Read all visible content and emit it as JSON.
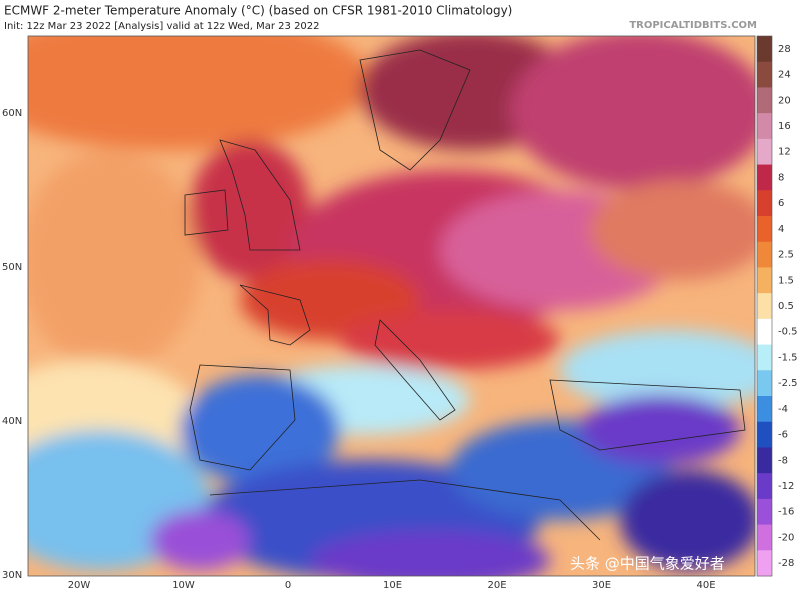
{
  "header": {
    "title": "ECMWF 2-meter Temperature Anomaly (°C) (based on CFSR 1981-2010 Climatology)",
    "subtitle": "Init: 12z Mar 23 2022   [Analysis]   valid at 12z Wed, Mar 23 2022",
    "brand": "TROPICALTIDBITS.COM"
  },
  "map": {
    "lat_labels": [
      "60N",
      "50N",
      "40N",
      "30N"
    ],
    "lon_labels": [
      "20W",
      "10W",
      "0",
      "10E",
      "20E",
      "30E",
      "40E"
    ]
  },
  "colorbar": {
    "labels": [
      "28",
      "24",
      "20",
      "16",
      "12",
      "8",
      "6",
      "4",
      "2.5",
      "1.5",
      "0.5",
      "-0.5",
      "-1.5",
      "-2.5",
      "-4",
      "-6",
      "-8",
      "-12",
      "-16",
      "-20",
      "-28"
    ],
    "colors": [
      "#6b3a2e",
      "#8a4b3e",
      "#b06a78",
      "#d28aa8",
      "#e6a8c8",
      "#c0284a",
      "#d8402e",
      "#e8622a",
      "#f0883a",
      "#f5b060",
      "#fde0a8",
      "#ffffff",
      "#b8eef8",
      "#78c8f0",
      "#3c8ee0",
      "#2050c0",
      "#3a2aa0",
      "#6a3ac8",
      "#9a50d8",
      "#d070e0",
      "#f0a0f0"
    ]
  },
  "watermark": "头条 @中国气象爱好者"
}
